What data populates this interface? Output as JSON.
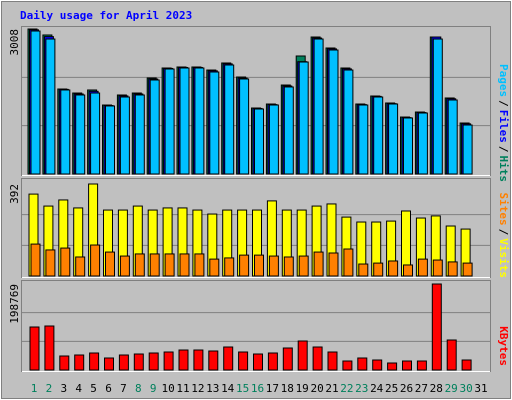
{
  "chart_data": [
    {
      "type": "bar",
      "title": "Daily usage for April 2023",
      "legend_separator": "/",
      "ylim": [
        0,
        3008
      ],
      "yticks": [
        3008
      ],
      "series": [
        {
          "name": "Hits",
          "color": "#00805c",
          "values": [
            3008,
            2884,
            1763,
            1680,
            1743,
            1431,
            1639,
            1680,
            1992,
            2199,
            2220,
            2220,
            2157,
            2303,
            2012,
            1369,
            1452,
            1846,
            2448,
            2842,
            2614,
            2199,
            1452,
            1618,
            1473,
            1182,
            1286,
            2842,
            1577,
            1058,
            null
          ]
        },
        {
          "name": "Files",
          "color": "#0000ff",
          "values": [
            2990,
            2850,
            1755,
            1660,
            1715,
            1420,
            1620,
            1660,
            1970,
            2190,
            2210,
            2210,
            2140,
            2285,
            1990,
            1360,
            1440,
            1825,
            2330,
            2820,
            2595,
            2180,
            1440,
            1610,
            1460,
            1170,
            1275,
            2842,
            1560,
            1040,
            null
          ]
        },
        {
          "name": "Pages",
          "color": "#00c0ff",
          "values": [
            2966,
            2800,
            1743,
            1639,
            1680,
            1411,
            1597,
            1639,
            1950,
            2178,
            2199,
            2199,
            2116,
            2261,
            1971,
            1348,
            1431,
            1805,
            2323,
            2800,
            2572,
            2157,
            1431,
            1597,
            1452,
            1162,
            1265,
            2800,
            1535,
            1016,
            null
          ]
        }
      ]
    },
    {
      "type": "bar",
      "legend_separator": "/",
      "ylim": [
        0,
        392
      ],
      "yticks": [
        392
      ],
      "series": [
        {
          "name": "Visits",
          "color": "#ffff00",
          "values": [
            349,
            298,
            324,
            290,
            392,
            281,
            281,
            298,
            281,
            290,
            290,
            281,
            264,
            281,
            281,
            281,
            320,
            281,
            281,
            298,
            307,
            251,
            230,
            230,
            234,
            277,
            247,
            256,
            213,
            200,
            null
          ]
        },
        {
          "name": "Sites",
          "color": "#ff8000",
          "values": [
            136,
            111,
            119,
            81,
            132,
            102,
            85,
            94,
            94,
            94,
            94,
            94,
            72,
            77,
            89,
            89,
            85,
            81,
            85,
            102,
            98,
            115,
            51,
            55,
            64,
            47,
            72,
            68,
            60,
            55,
            null
          ]
        }
      ]
    },
    {
      "type": "bar",
      "ylim": [
        0,
        198769
      ],
      "yticks": [
        198769
      ],
      "categories": [
        "1",
        "2",
        "3",
        "4",
        "5",
        "6",
        "7",
        "8",
        "9",
        "10",
        "11",
        "12",
        "13",
        "14",
        "15",
        "16",
        "17",
        "18",
        "19",
        "20",
        "21",
        "22",
        "23",
        "24",
        "25",
        "26",
        "27",
        "28",
        "29",
        "30",
        "31"
      ],
      "category_colors": [
        "#00805c",
        "#00805c",
        "#000000",
        "#000000",
        "#000000",
        "#000000",
        "#000000",
        "#00805c",
        "#00805c",
        "#000000",
        "#000000",
        "#000000",
        "#000000",
        "#000000",
        "#00805c",
        "#00805c",
        "#000000",
        "#000000",
        "#000000",
        "#000000",
        "#000000",
        "#00805c",
        "#00805c",
        "#000000",
        "#000000",
        "#000000",
        "#000000",
        "#000000",
        "#00805c",
        "#00805c",
        "#000000"
      ],
      "series": [
        {
          "name": "KBytes",
          "color": "#ff0000",
          "values": [
            99385,
            101700,
            32357,
            34669,
            39291,
            27735,
            34669,
            36980,
            39291,
            41602,
            46225,
            46225,
            43914,
            53160,
            41602,
            36980,
            39291,
            50848,
            67025,
            53160,
            41602,
            20801,
            27735,
            23113,
            16179,
            20801,
            20801,
            198769,
            69338,
            23113,
            null
          ]
        }
      ]
    }
  ]
}
